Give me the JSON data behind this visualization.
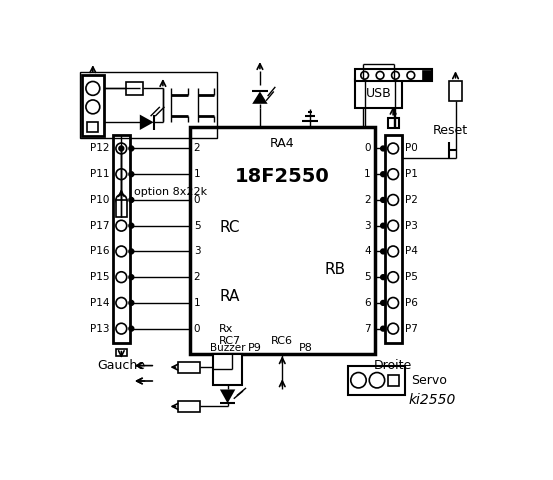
{
  "bg_color": "#ffffff",
  "line_color": "#000000",
  "title": "ki2550",
  "left_pins": [
    "P12",
    "P11",
    "P10",
    "P17",
    "P16",
    "P15",
    "P14",
    "P13"
  ],
  "right_pins": [
    "P0",
    "P1",
    "P2",
    "P3",
    "P4",
    "P5",
    "P6",
    "P7"
  ],
  "rc_labels": [
    "2",
    "1",
    "0",
    "5",
    "3",
    "2",
    "1",
    "0"
  ],
  "rb_labels": [
    "0",
    "1",
    "2",
    "3",
    "4",
    "5",
    "6",
    "7"
  ],
  "figsize": [
    5.53,
    4.8
  ],
  "dpi": 100
}
